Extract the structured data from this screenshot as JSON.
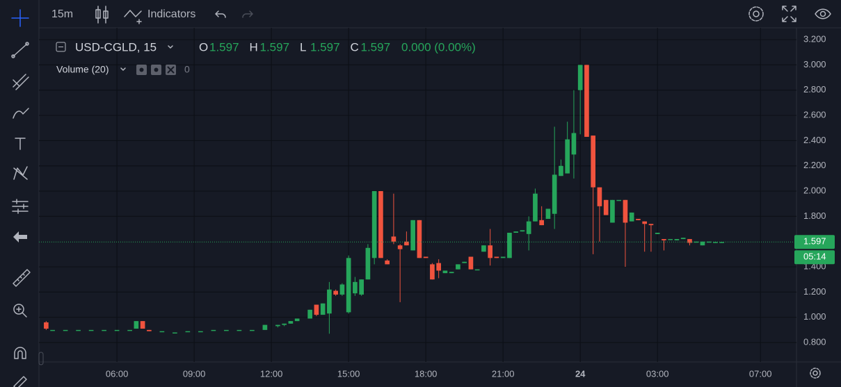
{
  "toolbar": {
    "interval": "15m",
    "indicators": "Indicators"
  },
  "chart_data": {
    "type": "candlestick",
    "symbol": "USD-CGLD, 15",
    "ohlc": [
      {
        "label": "O",
        "value": 1.597
      },
      {
        "label": "H",
        "value": 1.597
      },
      {
        "label": "L",
        "value": 1.597
      },
      {
        "label": "C",
        "value": 1.597
      }
    ],
    "change": "0.000 (0.00%)",
    "volume_label": "Volume (20)",
    "volume_value": 0,
    "last_price": 1.597,
    "countdown": "05:14",
    "up_color": "#26a65b",
    "down_color": "#f0533e",
    "grid": true,
    "xlim": [
      2.97,
      32.4
    ],
    "xticks": [
      {
        "value": 6,
        "label": "06:00"
      },
      {
        "value": 9,
        "label": "09:00"
      },
      {
        "value": 12,
        "label": "12:00"
      },
      {
        "value": 15,
        "label": "15:00"
      },
      {
        "value": 18,
        "label": "18:00"
      },
      {
        "value": 21,
        "label": "21:00"
      },
      24,
      {
        "value": 27,
        "label": "03:00"
      },
      {
        "value": 31,
        "label": "07:00"
      }
    ],
    "ylim": [
      0.646,
      3.294
    ],
    "yticks": [
      {
        "value": 0.8,
        "label": "0.800"
      },
      {
        "value": 1.0,
        "label": "1.000"
      },
      {
        "value": 1.2,
        "label": "1.200"
      },
      {
        "value": 1.4,
        "label": "1.400"
      },
      {
        "value": 1.8,
        "label": "1.800"
      },
      {
        "value": 2.0,
        "label": "2.000"
      },
      {
        "value": 2.2,
        "label": "2.200"
      },
      {
        "value": 2.4,
        "label": "2.400"
      },
      {
        "value": 2.6,
        "label": "2.600"
      },
      {
        "value": 2.8,
        "label": "2.800"
      },
      {
        "value": 3.0,
        "label": "3.000"
      },
      {
        "value": 3.2,
        "label": "3.200"
      }
    ],
    "x": [
      3.25,
      3.5,
      4,
      4.5,
      5,
      5.5,
      6,
      6.5,
      6.75,
      7,
      7.25,
      7.75,
      8.25,
      8.75,
      9.25,
      9.75,
      10.25,
      10.75,
      11.25,
      11.75,
      12.25,
      12.5,
      12.75,
      13,
      13.5,
      13.75,
      14,
      14.25,
      14.5,
      14.75,
      15,
      15.25,
      15.5,
      15.75,
      16,
      16.25,
      16.5,
      16.75,
      17,
      17.25,
      17.5,
      17.75,
      18,
      18.25,
      18.5,
      18.75,
      19,
      19.25,
      19.5,
      19.75,
      20,
      20.25,
      20.5,
      20.75,
      21,
      21.25,
      21.5,
      21.75,
      22,
      22.25,
      22.5,
      22.75,
      23,
      23.25,
      23.5,
      23.75,
      24,
      24.25,
      24.5,
      24.75,
      25,
      25.25,
      25.5,
      25.75,
      26,
      26.25,
      26.5,
      26.75,
      27,
      27.25,
      27.5,
      27.75,
      28,
      28.25,
      28.5,
      28.75,
      29,
      29.25,
      29.5
    ],
    "open": [
      0.96,
      0.9,
      0.9,
      0.9,
      0.9,
      0.9,
      0.9,
      0.9,
      0.91,
      0.97,
      0.9,
      0.89,
      0.88,
      0.89,
      0.89,
      0.9,
      0.9,
      0.9,
      0.9,
      0.9,
      0.93,
      0.94,
      0.95,
      0.97,
      0.99,
      1.1,
      1.02,
      1.03,
      1.21,
      1.18,
      1.04,
      1.19,
      1.18,
      1.3,
      1.47,
      2.0,
      1.45,
      1.64,
      1.57,
      1.6,
      1.53,
      1.77,
      1.48,
      1.42,
      1.43,
      1.35,
      1.35,
      1.38,
      1.43,
      1.48,
      1.38,
      1.52,
      1.57,
      1.48,
      1.47,
      1.47,
      1.67,
      1.68,
      1.66,
      1.76,
      1.77,
      1.78,
      1.82,
      2.12,
      2.14,
      2.29,
      2.8,
      3.0,
      2.44,
      2.03,
      1.93,
      1.75,
      1.93,
      1.93,
      1.76,
      1.78,
      1.76,
      1.74,
      1.66,
      1.62,
      1.62,
      1.61,
      1.62,
      1.62,
      1.6,
      1.57,
      1.6,
      1.597,
      1.597
    ],
    "high": [
      0.97,
      0.9,
      0.9,
      0.9,
      0.9,
      0.9,
      0.9,
      0.9,
      0.97,
      0.97,
      0.9,
      0.89,
      0.88,
      0.89,
      0.89,
      0.9,
      0.9,
      0.9,
      0.9,
      0.94,
      0.94,
      0.95,
      0.97,
      0.99,
      1.06,
      1.1,
      1.11,
      1.28,
      1.22,
      1.27,
      1.49,
      1.32,
      1.3,
      1.58,
      2.0,
      2.0,
      1.46,
      1.98,
      1.58,
      1.68,
      1.77,
      1.77,
      1.48,
      1.43,
      1.46,
      1.37,
      1.36,
      1.42,
      1.44,
      1.48,
      1.38,
      1.57,
      1.7,
      1.48,
      1.48,
      1.67,
      1.68,
      1.69,
      1.8,
      2.02,
      1.88,
      1.86,
      2.51,
      2.25,
      2.55,
      2.8,
      3.0,
      3.0,
      2.44,
      2.03,
      1.93,
      1.93,
      1.93,
      1.93,
      1.83,
      1.78,
      1.76,
      1.74,
      1.67,
      1.62,
      1.62,
      1.62,
      1.63,
      1.62,
      1.6,
      1.6,
      1.6,
      1.6,
      1.597
    ],
    "low": [
      0.9,
      0.9,
      0.9,
      0.9,
      0.9,
      0.9,
      0.9,
      0.9,
      0.91,
      0.91,
      0.89,
      0.89,
      0.88,
      0.89,
      0.89,
      0.9,
      0.9,
      0.9,
      0.9,
      0.9,
      0.92,
      0.93,
      0.95,
      0.97,
      0.99,
      1.01,
      1.02,
      0.87,
      1.17,
      1.17,
      1.03,
      1.17,
      1.17,
      1.3,
      1.42,
      1.47,
      1.42,
      1.58,
      1.12,
      1.57,
      1.53,
      1.47,
      1.47,
      1.3,
      1.31,
      1.35,
      1.35,
      1.38,
      1.43,
      1.38,
      1.38,
      1.52,
      1.41,
      1.47,
      1.47,
      1.47,
      1.67,
      1.68,
      1.53,
      1.76,
      1.73,
      1.78,
      1.7,
      2.12,
      2.14,
      2.1,
      2.45,
      2.43,
      1.5,
      1.6,
      1.81,
      1.75,
      1.93,
      1.4,
      1.76,
      1.77,
      1.52,
      1.52,
      1.66,
      1.53,
      1.62,
      1.61,
      1.62,
      1.57,
      1.6,
      1.57,
      1.6,
      1.597,
      1.597
    ],
    "close": [
      0.91,
      0.9,
      0.9,
      0.9,
      0.9,
      0.9,
      0.9,
      0.9,
      0.97,
      0.91,
      0.89,
      0.89,
      0.88,
      0.89,
      0.89,
      0.9,
      0.9,
      0.9,
      0.9,
      0.94,
      0.94,
      0.95,
      0.97,
      0.99,
      1.06,
      1.02,
      1.11,
      1.22,
      1.18,
      1.26,
      1.47,
      1.28,
      1.3,
      1.55,
      2.0,
      1.47,
      1.42,
      1.6,
      1.54,
      1.57,
      1.77,
      1.47,
      1.47,
      1.3,
      1.37,
      1.37,
      1.36,
      1.42,
      1.44,
      1.38,
      1.38,
      1.57,
      1.47,
      1.47,
      1.48,
      1.67,
      1.68,
      1.69,
      1.76,
      1.98,
      1.73,
      1.86,
      2.13,
      2.2,
      2.41,
      2.46,
      3.0,
      2.43,
      2.03,
      1.88,
      1.81,
      1.93,
      1.93,
      1.75,
      1.83,
      1.77,
      1.74,
      1.73,
      1.67,
      1.61,
      1.62,
      1.62,
      1.63,
      1.59,
      1.6,
      1.6,
      1.6,
      1.597,
      1.597
    ]
  }
}
